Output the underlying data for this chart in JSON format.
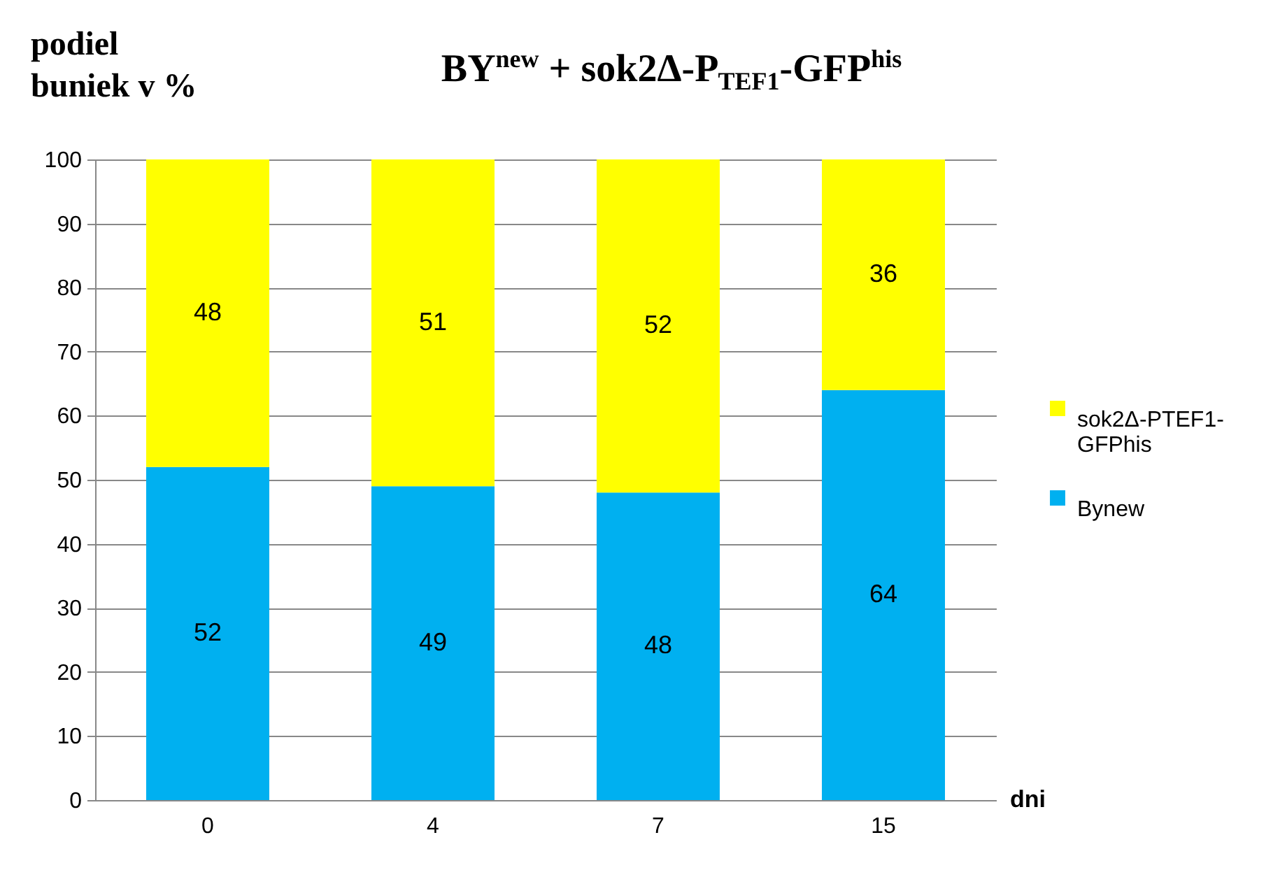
{
  "chart_data": {
    "type": "bar",
    "stacked": true,
    "title": "BY$^{new}$ + sok2Δ-P$_{TEF1}$-GFP$^{his}$",
    "ylabel": "podiel\nbuniek v %",
    "xlabel": "dni",
    "categories": [
      "0",
      "4",
      "7",
      "15"
    ],
    "series": [
      {
        "name": "Bynew",
        "color": "#00b0f0",
        "values": [
          52,
          49,
          48,
          64
        ]
      },
      {
        "name": "sok2Δ-PTEF1-GFPhis",
        "color": "#ffff00",
        "values": [
          48,
          51,
          52,
          36
        ]
      }
    ],
    "ylim": [
      0,
      100
    ],
    "yticks": [
      0,
      10,
      20,
      30,
      40,
      50,
      60,
      70,
      80,
      90,
      100
    ],
    "grid": "y",
    "legend": "right",
    "data_labels": true
  }
}
